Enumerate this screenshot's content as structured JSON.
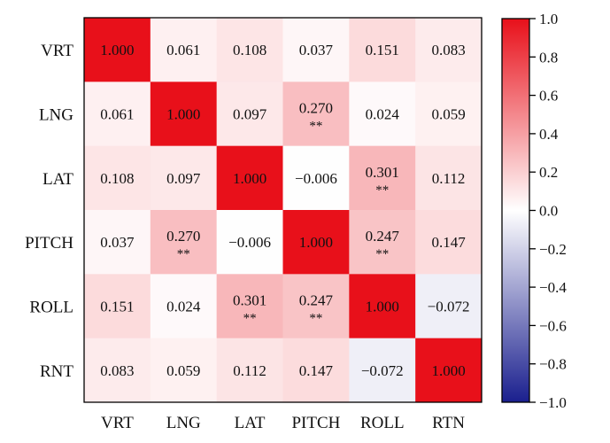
{
  "chart_data": {
    "type": "heatmap",
    "row_labels": [
      "VRT",
      "LNG",
      "LAT",
      "PITCH",
      "ROLL",
      "RNT"
    ],
    "column_labels": [
      "VRT",
      "LNG",
      "LAT",
      "PITCH",
      "ROLL",
      "RTN"
    ],
    "values": [
      [
        1.0,
        0.061,
        0.108,
        0.037,
        0.151,
        0.083
      ],
      [
        0.061,
        1.0,
        0.097,
        0.27,
        0.024,
        0.059
      ],
      [
        0.108,
        0.097,
        1.0,
        -0.006,
        0.301,
        0.112
      ],
      [
        0.037,
        0.27,
        -0.006,
        1.0,
        0.247,
        0.147
      ],
      [
        0.151,
        0.024,
        0.301,
        0.247,
        1.0,
        -0.072
      ],
      [
        0.083,
        0.059,
        0.112,
        0.147,
        -0.072,
        1.0
      ]
    ],
    "cell_labels": [
      [
        "1.000",
        "0.061",
        "0.108",
        "0.037",
        "0.151",
        "0.083"
      ],
      [
        "0.061",
        "1.000",
        "0.097",
        "0.270",
        "0.024",
        "0.059"
      ],
      [
        "0.108",
        "0.097",
        "1.000",
        "−0.006",
        "0.301",
        "0.112"
      ],
      [
        "0.037",
        "0.270",
        "−0.006",
        "1.000",
        "0.247",
        "0.147"
      ],
      [
        "0.151",
        "0.024",
        "0.301",
        "0.247",
        "1.000",
        "−0.072"
      ],
      [
        "0.083",
        "0.059",
        "0.112",
        "0.147",
        "−0.072",
        "1.000"
      ]
    ],
    "significance_marker": "**",
    "significant_cells": [
      [
        1,
        3
      ],
      [
        2,
        4
      ],
      [
        3,
        1
      ],
      [
        3,
        4
      ],
      [
        4,
        2
      ],
      [
        4,
        3
      ]
    ],
    "colorbar": {
      "range": [
        -1.0,
        1.0
      ],
      "ticks": [
        1.0,
        0.8,
        0.6,
        0.4,
        0.2,
        0.0,
        -0.2,
        -0.4,
        -0.6,
        -0.8,
        -1.0
      ],
      "tick_labels": [
        "1.0",
        "0.8",
        "0.6",
        "0.4",
        "0.2",
        "0.0",
        "−0.2",
        "−0.4",
        "−0.6",
        "−0.8",
        "−1.0"
      ],
      "position": "right",
      "colors": {
        "high": "#e8101a",
        "mid": "#ffffff",
        "low": "#1a1f8e"
      }
    },
    "title": "",
    "xlabel": "",
    "ylabel": "",
    "grid": false
  }
}
